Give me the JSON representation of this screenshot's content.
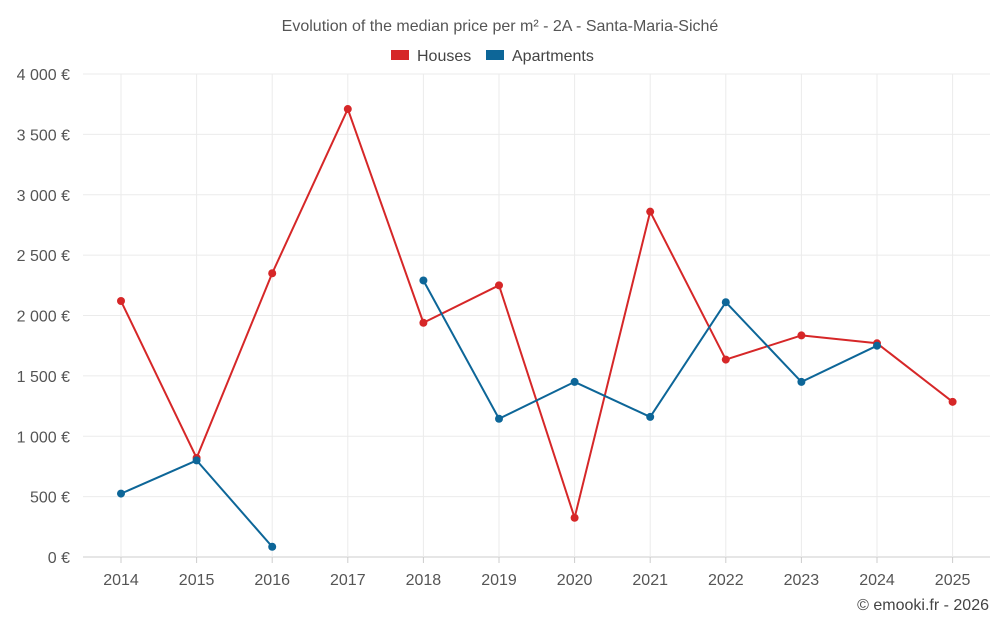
{
  "chart_data": {
    "type": "line",
    "title": "Evolution of the median price per m² - 2A - Santa-Maria-Siché",
    "categories": [
      "2014",
      "2015",
      "2016",
      "2017",
      "2018",
      "2019",
      "2020",
      "2021",
      "2022",
      "2023",
      "2024",
      "2025"
    ],
    "y_ticks": [
      0,
      500,
      1000,
      1500,
      2000,
      2500,
      3000,
      3500,
      4000
    ],
    "y_tick_labels": [
      "0 €",
      "500 €",
      "1 000 €",
      "1 500 €",
      "2 000 €",
      "2 500 €",
      "3 000 €",
      "3 500 €",
      "4 000 €"
    ],
    "ylim": [
      0,
      4000
    ],
    "xlabel": "",
    "ylabel": "",
    "grid": true,
    "legend_position": "top-center",
    "series": [
      {
        "name": "Houses",
        "color": "#d62728",
        "values": [
          2120,
          820,
          2350,
          3710,
          1940,
          2250,
          325,
          2860,
          1635,
          1835,
          1770,
          1285
        ]
      },
      {
        "name": "Apartments",
        "color": "#0d6698",
        "values": [
          525,
          800,
          85,
          null,
          2290,
          1145,
          1450,
          1160,
          2110,
          1450,
          1750,
          null
        ]
      }
    ]
  },
  "footer": {
    "credit": "© emooki.fr - 2026"
  }
}
